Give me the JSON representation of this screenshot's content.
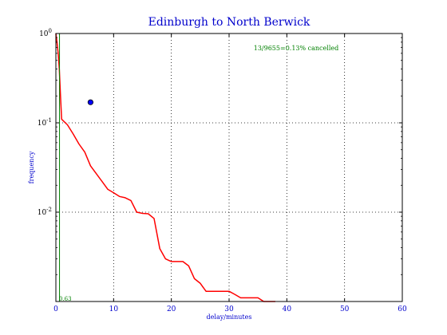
{
  "chart_data": {
    "type": "line",
    "title": "Edinburgh to North Berwick",
    "xlabel": "delay/minutes",
    "ylabel": "frequency",
    "xlim": [
      0,
      60
    ],
    "ylim": [
      0.001,
      1.0
    ],
    "yscale": "log",
    "grid": true,
    "x_ticks": [
      0,
      10,
      20,
      30,
      40,
      50,
      60
    ],
    "y_ticks": [
      {
        "value": 1.0,
        "base": "10",
        "exp": "0"
      },
      {
        "value": 0.1,
        "base": "10",
        "exp": "-1"
      },
      {
        "value": 0.01,
        "base": "10",
        "exp": "-2"
      }
    ],
    "annotation": "13/9655=0.13% cancelled",
    "vline": {
      "x": 0.63,
      "label": "0.63",
      "color": "#008000"
    },
    "point": {
      "x": 6,
      "y": 0.17,
      "color": "#0000ff"
    },
    "series": [
      {
        "color": "#ff0000",
        "x": [
          0,
          0.2,
          0.4,
          0.6,
          0.8,
          1,
          2,
          3,
          4,
          5,
          6,
          7,
          8,
          9,
          10,
          11,
          12,
          13,
          14,
          15,
          16,
          17,
          18,
          19,
          20,
          21,
          22,
          23,
          24,
          25,
          26,
          27,
          28,
          29,
          30,
          31,
          32,
          33,
          34,
          35,
          36,
          37,
          38
        ],
        "y": [
          1.0,
          0.8,
          0.6,
          0.4,
          0.2,
          0.11,
          0.095,
          0.075,
          0.058,
          0.047,
          0.033,
          0.027,
          0.022,
          0.018,
          0.0165,
          0.015,
          0.0145,
          0.0135,
          0.01,
          0.0097,
          0.0096,
          0.0085,
          0.0039,
          0.003,
          0.0028,
          0.0028,
          0.0028,
          0.0025,
          0.0018,
          0.0016,
          0.0013,
          0.0013,
          0.0013,
          0.0013,
          0.0013,
          0.0012,
          0.0011,
          0.0011,
          0.0011,
          0.0011,
          0.001,
          0.001,
          0.001
        ]
      }
    ]
  }
}
